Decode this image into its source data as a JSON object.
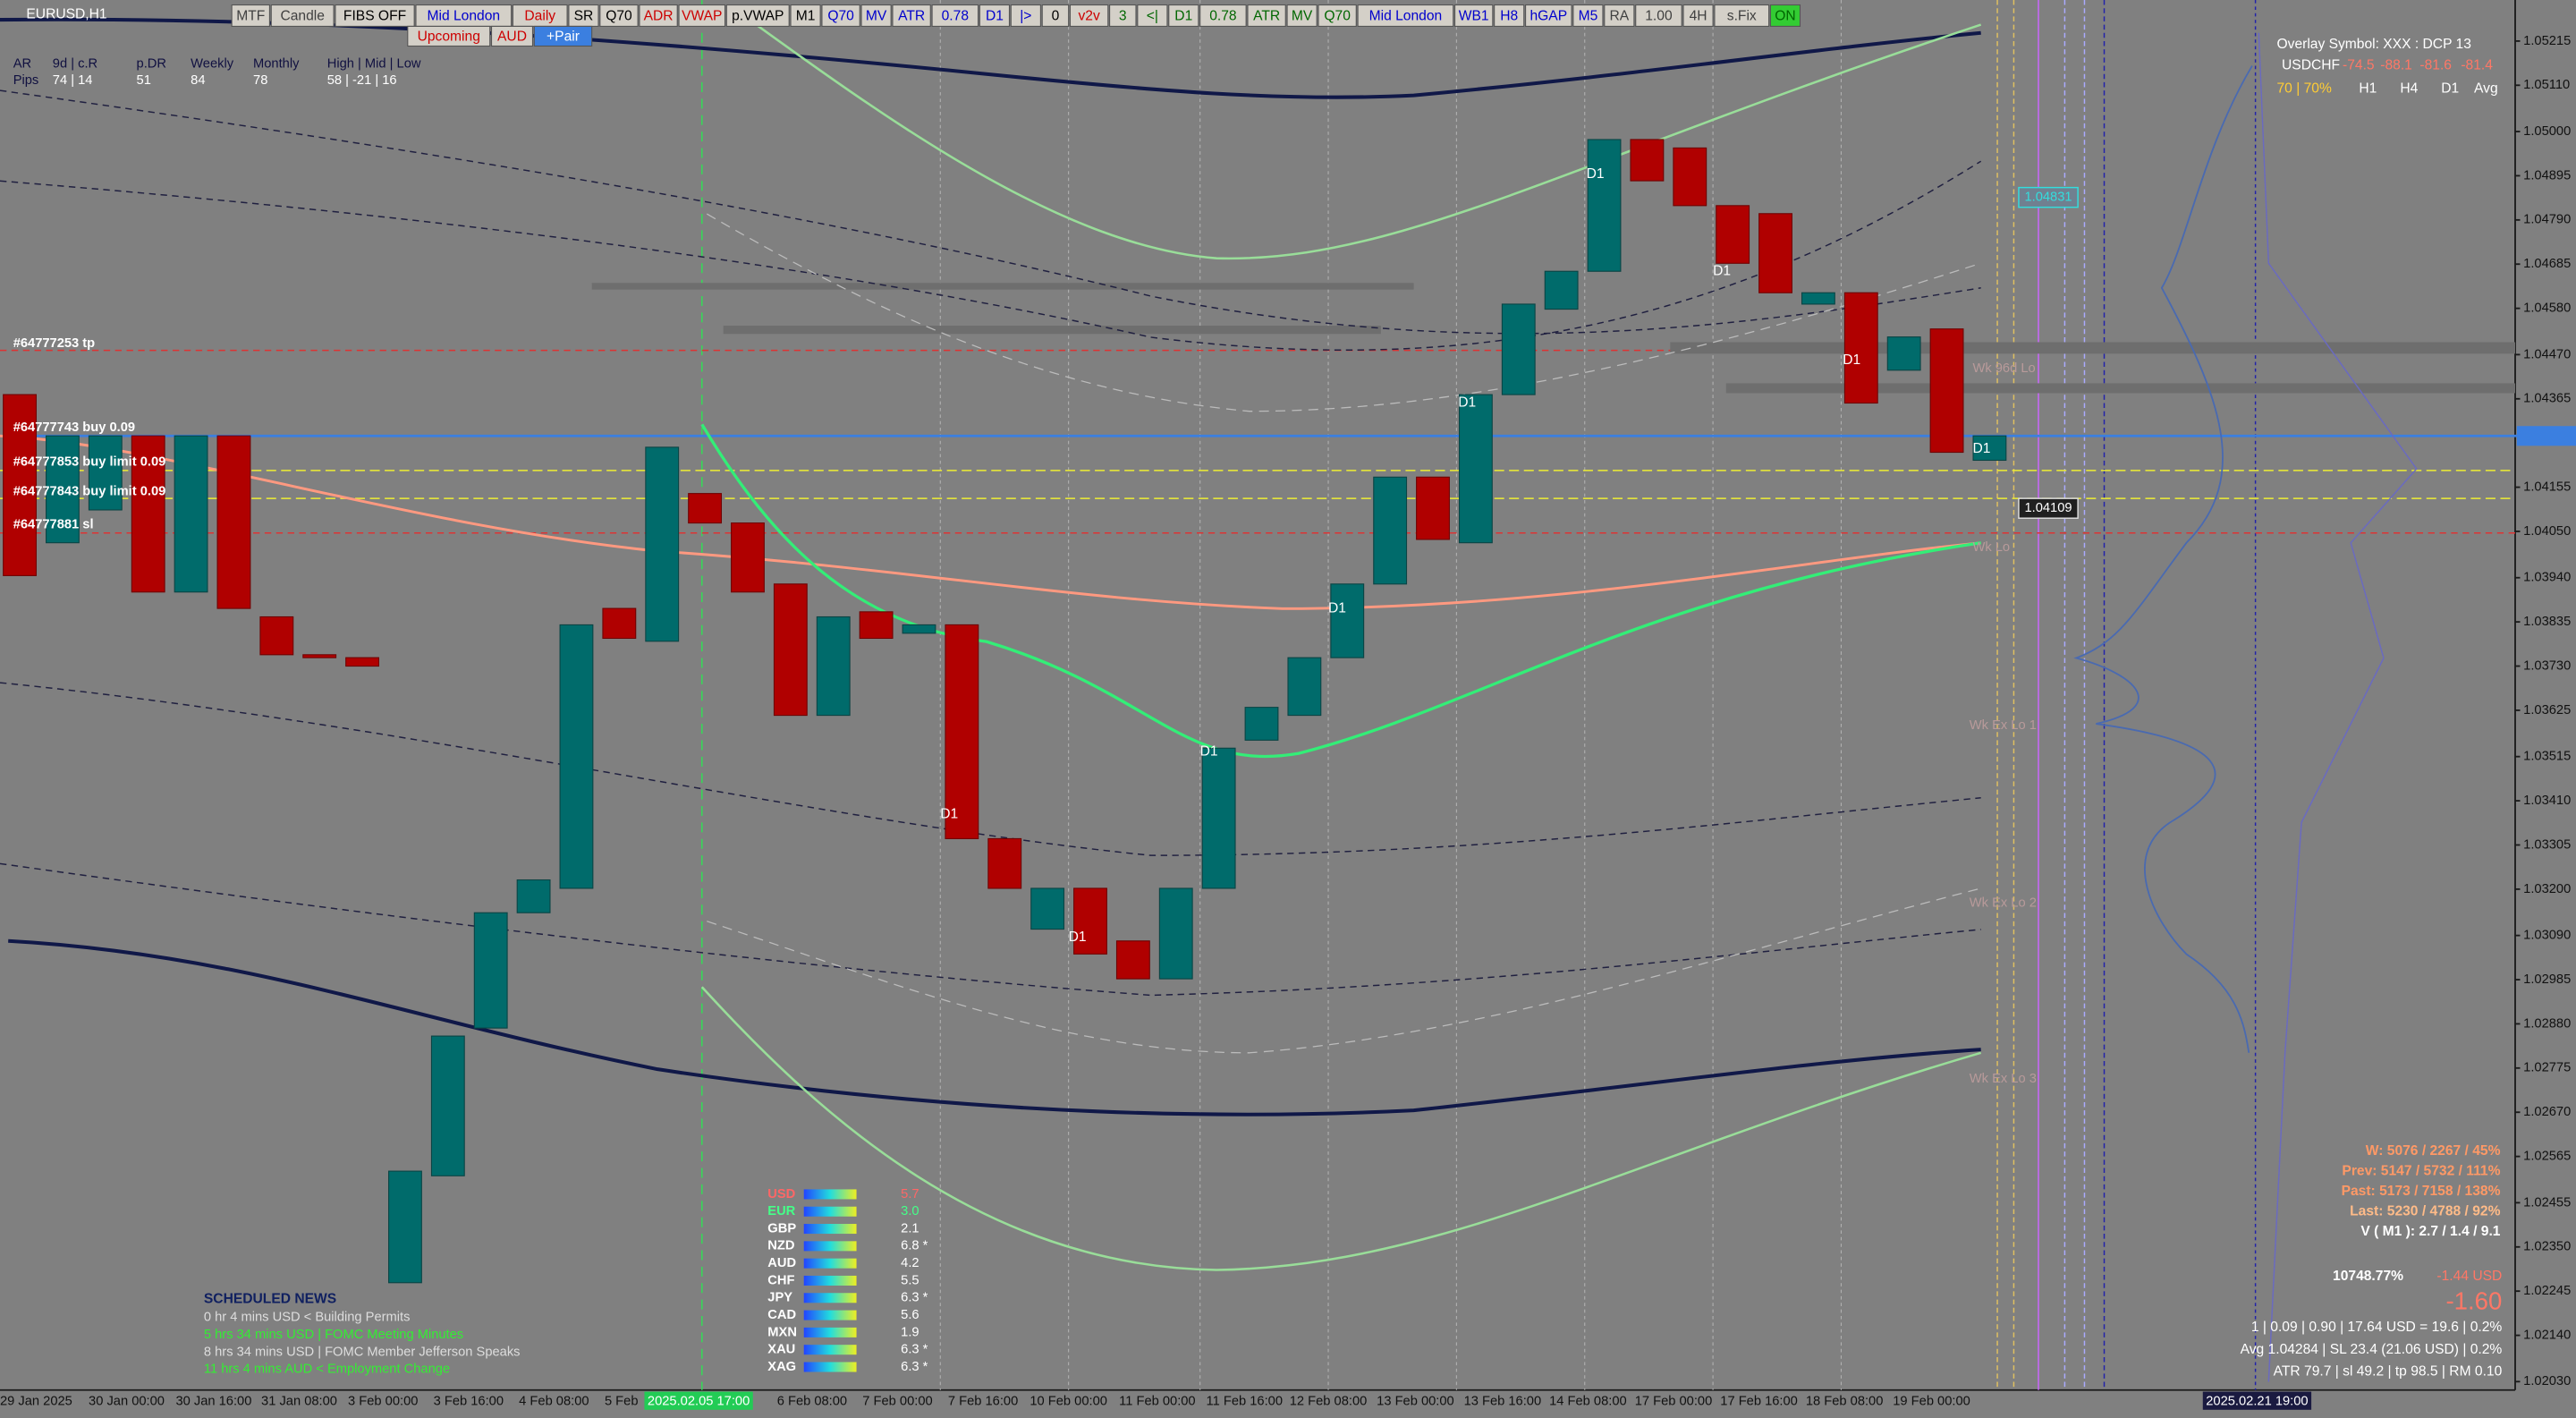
{
  "window_title": "EURUSD,H1",
  "toolbar": {
    "row1": [
      {
        "label": "MTF",
        "color": "#404040"
      },
      {
        "label": "Candle",
        "color": "#404040"
      },
      {
        "label": "FIBS OFF",
        "color": "#000000"
      },
      {
        "label": "Mid London",
        "color": "#0000cc"
      },
      {
        "label": "Daily",
        "color": "#cc0000"
      },
      {
        "label": "SR",
        "color": "#000000"
      },
      {
        "label": "Q70",
        "color": "#000000"
      },
      {
        "label": "ADR",
        "color": "#cc0000"
      },
      {
        "label": "VWAP",
        "color": "#cc0000"
      },
      {
        "label": "p.VWAP",
        "color": "#000000"
      },
      {
        "label": "M1",
        "color": "#000000"
      },
      {
        "label": "Q70",
        "color": "#0000cc"
      },
      {
        "label": "MV",
        "color": "#0000cc"
      },
      {
        "label": "ATR",
        "color": "#0000cc"
      },
      {
        "label": "0.78",
        "color": "#0000cc"
      },
      {
        "label": "D1",
        "color": "#0000cc"
      },
      {
        "label": "|>",
        "color": "#0000cc"
      },
      {
        "label": "0",
        "color": "#000000"
      },
      {
        "label": "v2v",
        "color": "#cc0000"
      },
      {
        "label": "3",
        "color": "#006600"
      },
      {
        "label": "<|",
        "color": "#006600"
      },
      {
        "label": "D1",
        "color": "#006600"
      },
      {
        "label": "0.78",
        "color": "#006600"
      },
      {
        "label": "ATR",
        "color": "#006600"
      },
      {
        "label": "MV",
        "color": "#006600"
      },
      {
        "label": "Q70",
        "color": "#006600"
      },
      {
        "label": "Mid London",
        "color": "#0000cc"
      },
      {
        "label": "WB1",
        "color": "#0000cc"
      },
      {
        "label": "H8",
        "color": "#0000cc"
      },
      {
        "label": "hGAP",
        "color": "#0000cc"
      },
      {
        "label": "M5",
        "color": "#0000cc"
      },
      {
        "label": "RA",
        "color": "#404040"
      },
      {
        "label": "1.00",
        "color": "#404040"
      },
      {
        "label": "4H",
        "color": "#404040"
      },
      {
        "label": "s.Fix",
        "color": "#404040"
      },
      {
        "label": "ON",
        "color": "#006600"
      }
    ],
    "row2": [
      {
        "label": "Upcoming",
        "color": "#cc0000"
      },
      {
        "label": "AUD",
        "color": "#cc0000"
      },
      {
        "label": "+Pair",
        "color": "#ffffff"
      }
    ]
  },
  "stats": {
    "headers": [
      "AR",
      "9d | c.R",
      "p.DR",
      "Weekly",
      "Monthly",
      "High | Mid | Low"
    ],
    "row_label": "Pips",
    "values": [
      "74 | 14",
      "51",
      "84",
      "78",
      "58 | -21 | 16"
    ]
  },
  "trades": [
    "#64777253 tp",
    "#64777743 buy 0.09",
    "#64777853 buy limit 0.09",
    "#64777843 buy limit 0.09",
    "#64777881 sl"
  ],
  "overlay": {
    "symbol_line": "Overlay Symbol: XXX : DCP 13",
    "pair": "USDCHF",
    "values": [
      "-74.5",
      "-88.1",
      "-81.6",
      "-81.4"
    ],
    "ratio": "70 | 70%",
    "timeframes": [
      "H1",
      "H4",
      "D1",
      "Avg"
    ]
  },
  "level_boxes": [
    "1.04831",
    "1.04109"
  ],
  "level_labels": [
    "Wk 96d Lo",
    "Wk Lo",
    "Wk Ex Lo 1",
    "Wk Ex Lo 2",
    "Wk Ex Lo 3"
  ],
  "chart": {
    "ylim": [
      1.0201,
      1.05293
    ],
    "price_axis": [
      "1.05215",
      "1.05110",
      "1.05000",
      "1.04895",
      "1.04790",
      "1.04685",
      "1.04580",
      "1.04470",
      "1.04365",
      "1.04155",
      "1.04050",
      "1.03940",
      "1.03835",
      "1.03730",
      "1.03625",
      "1.03515",
      "1.03410",
      "1.03305",
      "1.03200",
      "1.03090",
      "1.02985",
      "1.02880",
      "1.02775",
      "1.02670",
      "1.02565",
      "1.02455",
      "1.02350",
      "1.02245",
      "1.02140",
      "1.02030"
    ],
    "time_axis": [
      "29 Jan 2025",
      "30 Jan 00:00",
      "30 Jan 16:00",
      "31 Jan 08:00",
      "3 Feb 00:00",
      "3 Feb 16:00",
      "4 Feb 08:00",
      "5 Feb",
      "6 Feb 08:00",
      "7 Feb 00:00",
      "7 Feb 16:00",
      "10 Feb 00:00",
      "11 Feb 00:00",
      "11 Feb 16:00",
      "12 Feb 08:00",
      "13 Feb 00:00",
      "13 Feb 16:00",
      "14 Feb 08:00",
      "17 Feb 00:00",
      "17 Feb 16:00",
      "18 Feb 08:00",
      "19 Feb 00:00"
    ],
    "time_cursor": "2025.02.05 17:00",
    "end_cursor": "2025.02.21 19:00",
    "d1_marker": "D1",
    "up_color": "#006b6b",
    "down_color": "#b00000",
    "candles": [
      {
        "open": 1.04375,
        "close": 1.03945
      },
      {
        "open": 1.04023,
        "close": 1.04277
      },
      {
        "open": 1.04101,
        "close": 1.04277
      },
      {
        "open": 1.04277,
        "close": 1.03906
      },
      {
        "open": 1.03906,
        "close": 1.04277
      },
      {
        "open": 1.04277,
        "close": 1.03867
      },
      {
        "open": 1.03847,
        "close": 1.03757
      },
      {
        "open": 1.03757,
        "close": 1.0375
      },
      {
        "open": 1.0375,
        "close": 1.0373
      },
      {
        "open": 1.02265,
        "close": 1.0253
      },
      {
        "open": 1.02519,
        "close": 1.02851
      },
      {
        "open": 1.0287,
        "close": 1.03144
      },
      {
        "open": 1.03144,
        "close": 1.03222
      },
      {
        "open": 1.03202,
        "close": 1.03828
      },
      {
        "open": 1.03867,
        "close": 1.03796
      },
      {
        "open": 1.03789,
        "close": 1.0425
      },
      {
        "open": 1.0414,
        "close": 1.0407
      },
      {
        "open": 1.0407,
        "close": 1.03906
      },
      {
        "open": 1.03925,
        "close": 1.03613
      },
      {
        "open": 1.03613,
        "close": 1.03847
      },
      {
        "open": 1.03859,
        "close": 1.03796
      },
      {
        "open": 1.03808,
        "close": 1.03828
      },
      {
        "open": 1.03828,
        "close": 1.0332
      },
      {
        "open": 1.0332,
        "close": 1.03202
      },
      {
        "open": 1.03105,
        "close": 1.03202
      },
      {
        "open": 1.03202,
        "close": 1.03046
      },
      {
        "open": 1.03077,
        "close": 1.02987
      },
      {
        "open": 1.02987,
        "close": 1.03202
      },
      {
        "open": 1.03202,
        "close": 1.03535
      },
      {
        "open": 1.03554,
        "close": 1.03632
      },
      {
        "open": 1.03613,
        "close": 1.0375
      },
      {
        "open": 1.0375,
        "close": 1.03925
      },
      {
        "open": 1.03925,
        "close": 1.04179
      },
      {
        "open": 1.04179,
        "close": 1.04031
      },
      {
        "open": 1.04023,
        "close": 1.04375
      },
      {
        "open": 1.04375,
        "close": 1.0459
      },
      {
        "open": 1.04578,
        "close": 1.04668
      },
      {
        "open": 1.04668,
        "close": 1.04981
      },
      {
        "open": 1.04981,
        "close": 1.04883
      },
      {
        "open": 1.04961,
        "close": 1.04824
      },
      {
        "open": 1.04824,
        "close": 1.04687
      },
      {
        "open": 1.04805,
        "close": 1.04617
      },
      {
        "open": 1.0459,
        "close": 1.04617
      },
      {
        "open": 1.04617,
        "close": 1.04355
      },
      {
        "open": 1.04433,
        "close": 1.04512
      },
      {
        "open": 1.04531,
        "close": 1.04238
      },
      {
        "open": 1.04219,
        "close": 1.04277
      }
    ]
  },
  "news": {
    "title": "SCHEDULED NEWS",
    "items": [
      {
        "text": "0 hr 4 mins  USD  <  Building Permits",
        "color": "#dddddd"
      },
      {
        "text": "5 hrs 34 mins  USD  |  FOMC Meeting Minutes",
        "color": "#33ee33"
      },
      {
        "text": "8 hrs 34 mins  USD  |  FOMC Member Jefferson Speaks",
        "color": "#dddddd"
      },
      {
        "text": "11 hrs 4 mins  AUD  <  Employment Change",
        "color": "#33ee33"
      }
    ]
  },
  "strength": [
    {
      "currency": "USD",
      "value": "5.7",
      "color": "#ff6666"
    },
    {
      "currency": "EUR",
      "value": "3.0",
      "color": "#44ff88"
    },
    {
      "currency": "GBP",
      "value": "2.1",
      "color": "#ffffff"
    },
    {
      "currency": "NZD",
      "value": "6.8 *",
      "color": "#ffffff"
    },
    {
      "currency": "AUD",
      "value": "4.2",
      "color": "#ffffff"
    },
    {
      "currency": "CHF",
      "value": "5.5",
      "color": "#ffffff"
    },
    {
      "currency": "JPY",
      "value": "6.3 *",
      "color": "#ffffff"
    },
    {
      "currency": "CAD",
      "value": "5.6",
      "color": "#ffffff"
    },
    {
      "currency": "MXN",
      "value": "1.9",
      "color": "#ffffff"
    },
    {
      "currency": "XAU",
      "value": "6.3 *",
      "color": "#ffffff"
    },
    {
      "currency": "XAG",
      "value": "6.3 *",
      "color": "#ffffff"
    }
  ],
  "summary": {
    "ranges": [
      {
        "text": "W: 5076 / 2267 / 45%",
        "color": "#ff9966"
      },
      {
        "text": "Prev: 5147 / 5732 / 111%",
        "color": "#ff9966"
      },
      {
        "text": "Past: 5173 / 7158 / 138%",
        "color": "#ff9966"
      },
      {
        "text": "Last: 5230 / 4788 / 92%",
        "color": "#ffbb88"
      },
      {
        "text": "V ( M1 ): 2.7 / 1.4 / 9.1",
        "color": "#ffffff"
      }
    ],
    "balance_pct": "10748.77%",
    "pnl_usd": "-1.44 USD",
    "pnl_pips": "-1.60",
    "lines": [
      "1  |  0.09  |  0.90  |  17.64 USD = 19.6  |  0.2%",
      "Avg 1.04284  |  SL 23.4 (21.06 USD)  |  0.2%",
      "ATR 79.7  |  sl 49.2  |  tp 98.5  |  RM 0.10"
    ]
  }
}
